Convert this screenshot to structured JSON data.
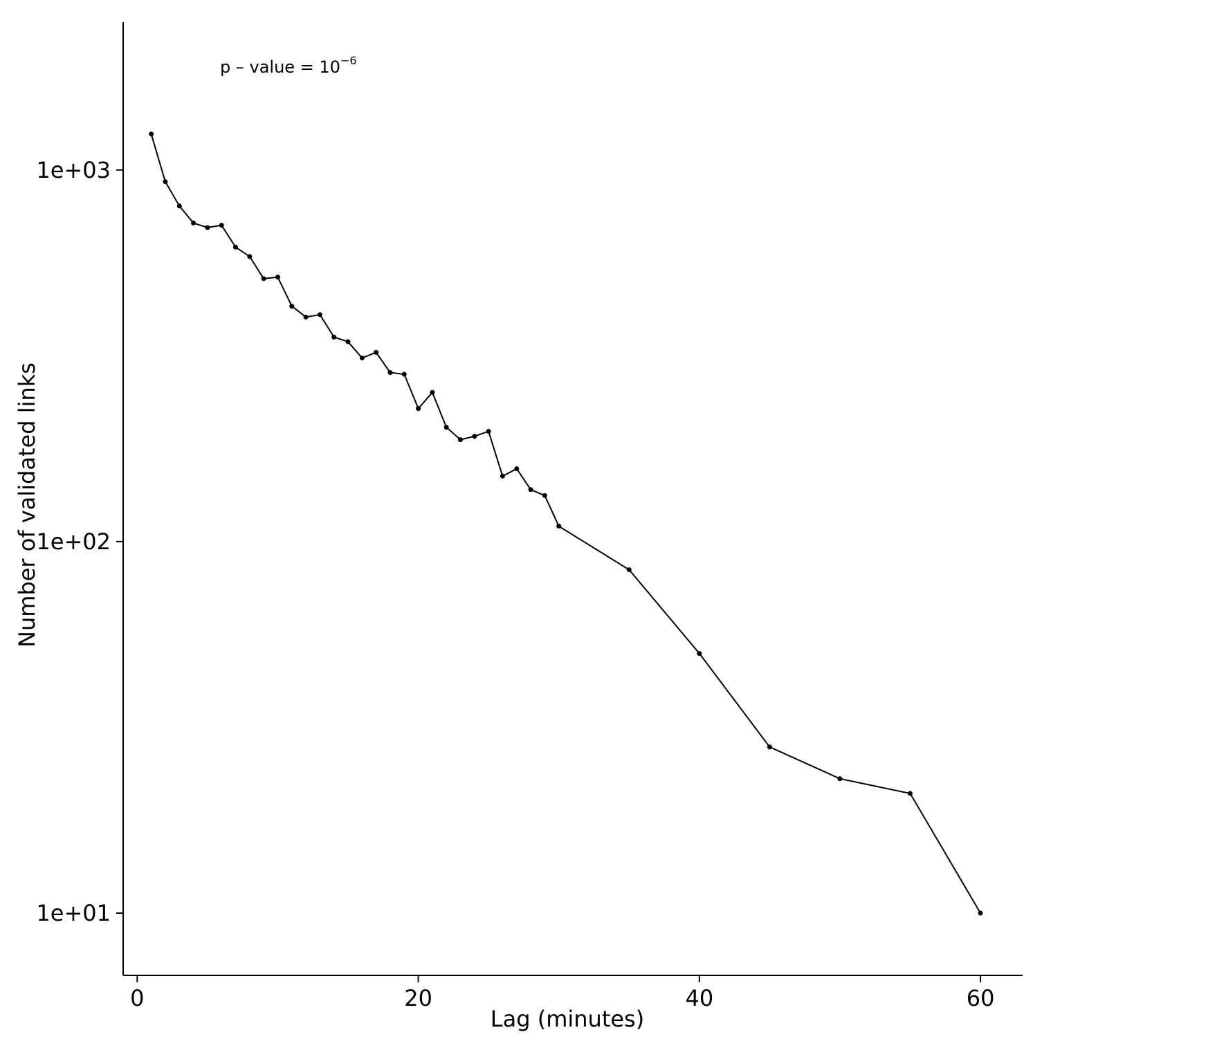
{
  "chart_data": {
    "type": "line",
    "title": "",
    "xlabel": "Lag (minutes)",
    "ylabel": "Number of validated links",
    "xlim": [
      -1,
      63
    ],
    "ylim": [
      6.8,
      2500
    ],
    "y_scale": "log",
    "x_ticks": [
      0,
      20,
      40,
      60
    ],
    "x_tick_labels": [
      "0",
      "20",
      "40",
      "60"
    ],
    "y_ticks": [
      10,
      100,
      1000
    ],
    "y_tick_labels": [
      "1e+01",
      "1e+02",
      "1e+03"
    ],
    "grid": false,
    "annotation": {
      "base": "p – value = 10",
      "exponent": "−6"
    },
    "color": "#000000",
    "series": [
      {
        "x": [
          1,
          2,
          3,
          4,
          5,
          6,
          7,
          8,
          9,
          10,
          11,
          12,
          13,
          14,
          15,
          16,
          17,
          18,
          19,
          20,
          21,
          22,
          23,
          24,
          25,
          26,
          27,
          28,
          29,
          30,
          35,
          40,
          45,
          50,
          55,
          60
        ],
        "y": [
          1250,
          930,
          800,
          720,
          700,
          710,
          620,
          585,
          510,
          515,
          430,
          402,
          408,
          355,
          345,
          312,
          323,
          285,
          282,
          228,
          252,
          203,
          188,
          192,
          198,
          150,
          157,
          138,
          133,
          110,
          84,
          50,
          28,
          23,
          21,
          10
        ]
      }
    ]
  }
}
